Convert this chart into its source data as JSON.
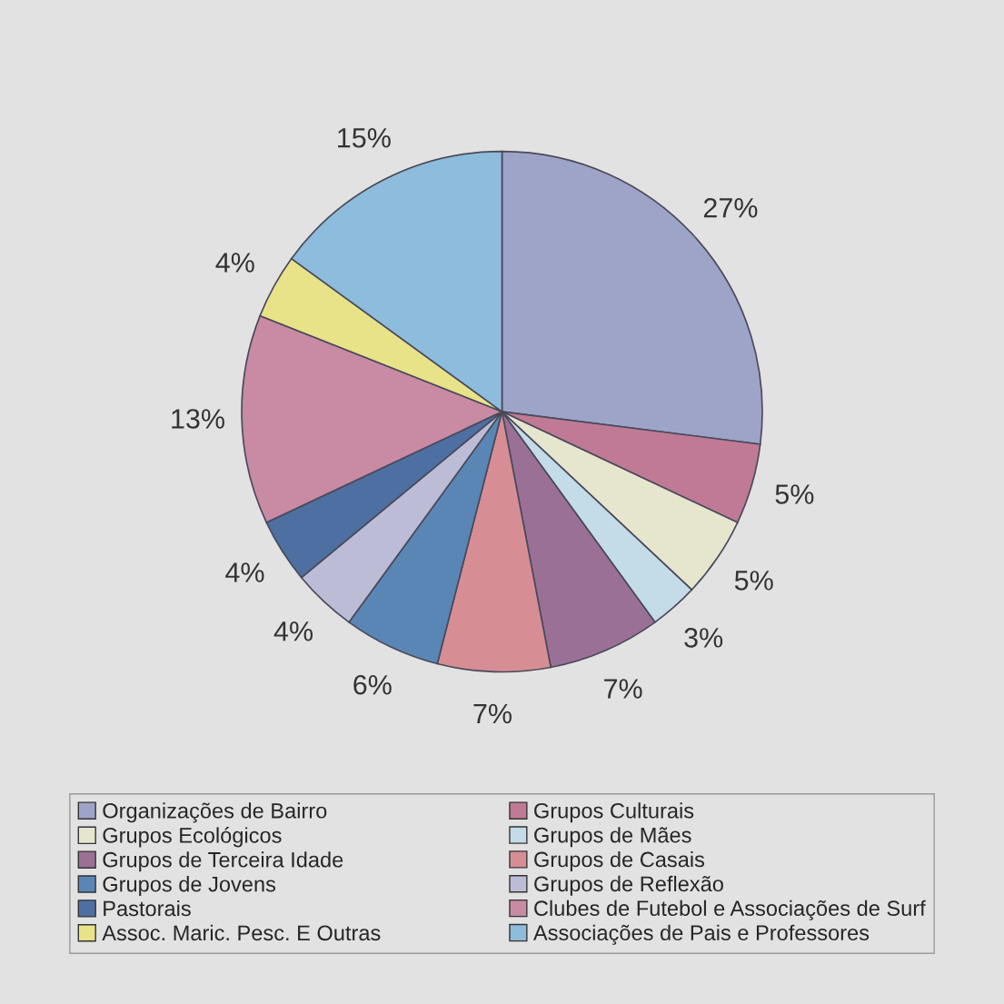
{
  "chart_data": {
    "type": "pie",
    "categories": [
      "Organizações de Bairro",
      "Grupos Culturais",
      "Grupos Ecológicos",
      "Grupos de Mães",
      "Grupos de Terceira Idade",
      "Grupos de Casais",
      "Grupos de Jovens",
      "Grupos de Reflexão",
      "Pastorais",
      "Clubes de Futebol e Associações de Surf",
      "Assoc. Maric. Pesc. E Outras",
      "Associações de Pais e Professores"
    ],
    "values": [
      27,
      5,
      5,
      3,
      7,
      7,
      6,
      4,
      4,
      13,
      4,
      15
    ],
    "value_labels": [
      "27%",
      "5%",
      "5%",
      "3%",
      "7%",
      "7%",
      "6%",
      "4%",
      "4%",
      "13%",
      "4%",
      "15%"
    ],
    "colors": [
      "#9ea3c8",
      "#c07a96",
      "#e6e6cf",
      "#c4dbe8",
      "#9b7097",
      "#d68e94",
      "#5a86b6",
      "#bcbcd6",
      "#4e6fa2",
      "#c98aa4",
      "#e8e288",
      "#8dbcdc"
    ],
    "legend": "bottom"
  }
}
